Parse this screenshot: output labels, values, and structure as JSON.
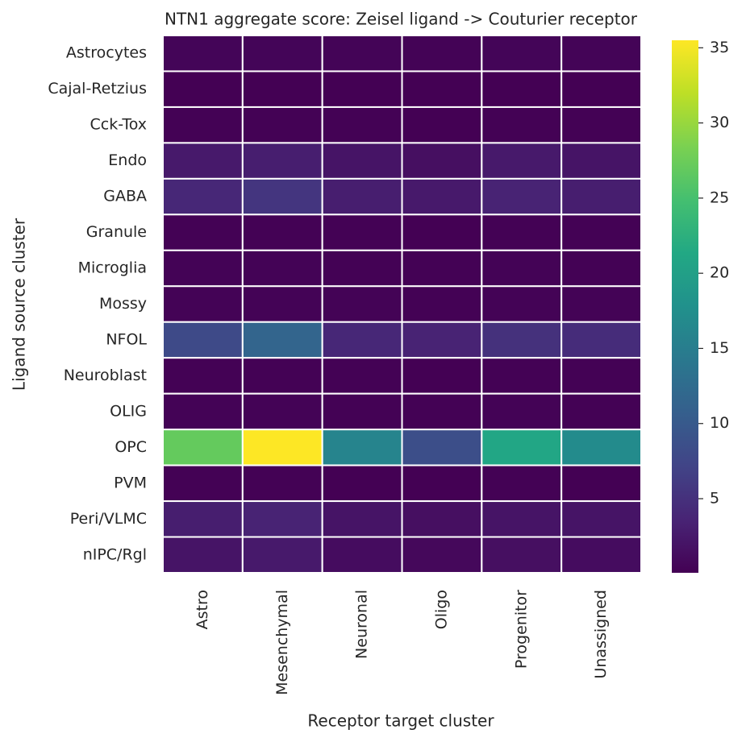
{
  "chart_data": {
    "type": "heatmap",
    "title": "NTN1 aggregate score: Zeisel ligand -> Couturier receptor",
    "x_label": "Receptor target cluster",
    "y_label": "Ligand source cluster",
    "x_categories": [
      "Astro",
      "Mesenchymal",
      "Neuronal",
      "Oligo",
      "Progenitor",
      "Unassigned"
    ],
    "y_categories": [
      "Astrocytes",
      "Cajal-Retzius",
      "Cck-Tox",
      "Endo",
      "GABA",
      "Granule",
      "Microglia",
      "Mossy",
      "NFOL",
      "Neuroblast",
      "OLIG",
      "OPC",
      "PVM",
      "Peri/VLMC",
      "nIPC/Rgl"
    ],
    "values": [
      [
        0.5,
        0.5,
        0.4,
        0.3,
        0.5,
        0.4
      ],
      [
        0.1,
        0.1,
        0.1,
        0.1,
        0.1,
        0.1
      ],
      [
        0.2,
        0.2,
        0.2,
        0.1,
        0.2,
        0.2
      ],
      [
        2.5,
        3,
        2,
        1.5,
        2.5,
        2
      ],
      [
        4,
        5.5,
        3,
        2.5,
        3.5,
        3
      ],
      [
        0.2,
        0.2,
        0.2,
        0.1,
        0.2,
        0.2
      ],
      [
        0.3,
        0.3,
        0.2,
        0.2,
        0.3,
        0.2
      ],
      [
        0.3,
        0.3,
        0.3,
        0.2,
        0.3,
        0.3
      ],
      [
        8,
        11.5,
        4,
        3.5,
        5,
        4.5
      ],
      [
        0.2,
        0.2,
        0.2,
        0.1,
        0.2,
        0.2
      ],
      [
        0.3,
        0.3,
        0.2,
        0.2,
        0.3,
        0.2
      ],
      [
        27,
        35.5,
        16,
        8.5,
        21,
        17
      ],
      [
        0.2,
        0.2,
        0.1,
        0.1,
        0.2,
        0.1
      ],
      [
        3,
        3.5,
        2,
        1.5,
        2,
        2
      ],
      [
        2,
        2.5,
        1.2,
        0.8,
        1.5,
        1.2
      ]
    ],
    "colormap": "viridis",
    "zlim": [
      0.07,
      35.5
    ],
    "zticks": [
      5,
      10,
      15,
      20,
      25,
      30,
      35
    ]
  }
}
